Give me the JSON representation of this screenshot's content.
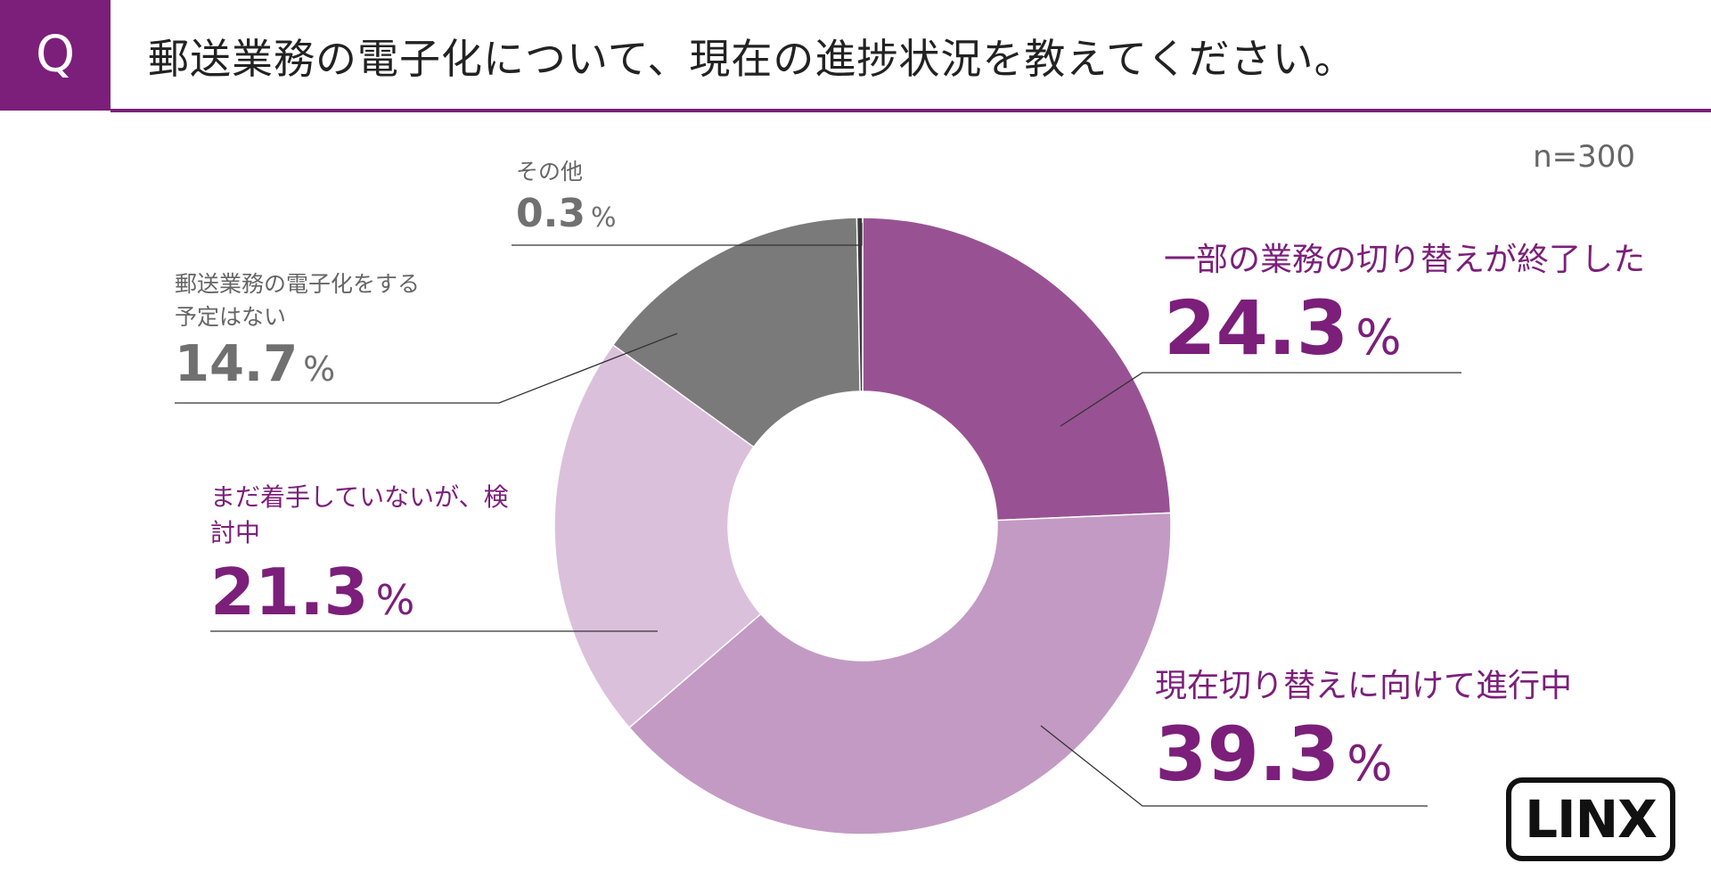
{
  "header": {
    "q_mark": "Q",
    "question": "郵送業務の電子化について、現在の進捗状況を教えてください。"
  },
  "sample_size": "n=300",
  "logo_text": "LINX",
  "labels": [
    {
      "name": "一部の業務の切り替えが終了した",
      "value": "24.3",
      "unit": "%"
    },
    {
      "name": "現在切り替えに向けて進行中",
      "value": "39.3",
      "unit": "%"
    },
    {
      "name": "まだ着手していないが、検討中",
      "value": "21.3",
      "unit": "%"
    },
    {
      "name": "郵送業務の電子化をする予定はない",
      "value": "14.7",
      "unit": "%"
    },
    {
      "name": "その他",
      "value": "0.3",
      "unit": "%"
    }
  ],
  "colors": {
    "accent": "#7b1f7a",
    "gray_text": "#707070"
  },
  "chart_data": {
    "type": "pie",
    "style": "donut",
    "title": "郵送業務の電子化について、現在の進捗状況を教えてください。",
    "n": 300,
    "unit": "%",
    "start": "12 o'clock",
    "direction": "clockwise",
    "slices": [
      {
        "label": "一部の業務の切り替えが終了した",
        "value": 24.3,
        "color": "#985293"
      },
      {
        "label": "現在切り替えに向けて進行中",
        "value": 39.3,
        "color": "#c39ac3"
      },
      {
        "label": "まだ着手していないが、検討中",
        "value": 21.3,
        "color": "#dbc0dc"
      },
      {
        "label": "郵送業務の電子化をする予定はない",
        "value": 14.7,
        "color": "#7a7a7a"
      },
      {
        "label": "その他",
        "value": 0.3,
        "color": "#3a3a3a"
      }
    ]
  }
}
